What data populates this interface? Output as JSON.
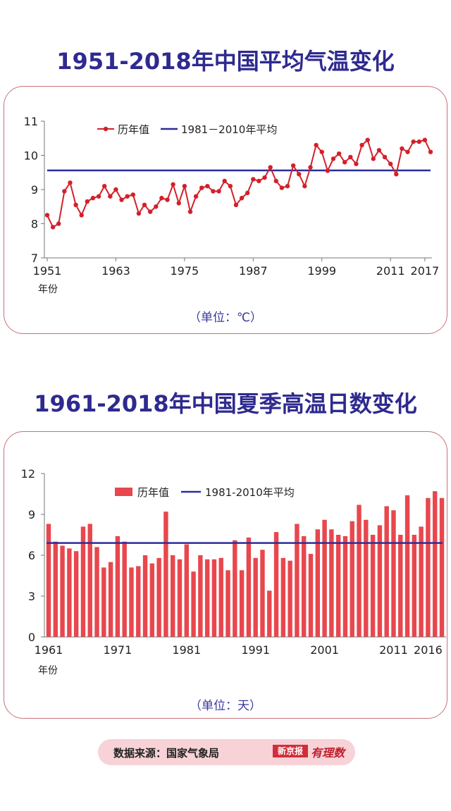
{
  "page": {
    "title1": "1951-2018年中国平均气温变化",
    "title2": "1961-2018年中国夏季高温日数变化",
    "unit1": "（单位：℃）",
    "unit2": "（单位：天）",
    "source_label": "数据来源：国家气象局",
    "logo_box": "新京报",
    "logo_script": "有理数"
  },
  "colors": {
    "title": "#2e2a8f",
    "line_series": "#d3202a",
    "bar_series": "#e8474d",
    "average_line": "#2b2d9b",
    "card_border": "#c9717a",
    "source_bg": "#f7d2d7"
  },
  "chart_data": [
    {
      "type": "line",
      "title": "1951-2018年中国平均气温变化",
      "xlabel": "年份",
      "ylabel": "",
      "unit": "（单位：℃）",
      "ylim": [
        7,
        11
      ],
      "yticks": [
        7,
        8,
        9,
        10,
        11
      ],
      "xtick_labels": [
        "1951",
        "1963",
        "1975",
        "1987",
        "1999",
        "2011",
        "2017"
      ],
      "legend": [
        "历年值",
        "1981－2010年平均"
      ],
      "legend_position": "top-left",
      "x": [
        1951,
        1952,
        1953,
        1954,
        1955,
        1956,
        1957,
        1958,
        1959,
        1960,
        1961,
        1962,
        1963,
        1964,
        1965,
        1966,
        1967,
        1968,
        1969,
        1970,
        1971,
        1972,
        1973,
        1974,
        1975,
        1976,
        1977,
        1978,
        1979,
        1980,
        1981,
        1982,
        1983,
        1984,
        1985,
        1986,
        1987,
        1988,
        1989,
        1990,
        1991,
        1992,
        1993,
        1994,
        1995,
        1996,
        1997,
        1998,
        1999,
        2000,
        2001,
        2002,
        2003,
        2004,
        2005,
        2006,
        2007,
        2008,
        2009,
        2010,
        2011,
        2012,
        2013,
        2014,
        2015,
        2016,
        2017,
        2018
      ],
      "series": [
        {
          "name": "历年值",
          "values": [
            8.25,
            7.9,
            8.0,
            8.95,
            9.2,
            8.55,
            8.25,
            8.65,
            8.75,
            8.8,
            9.1,
            8.8,
            9.0,
            8.7,
            8.8,
            8.85,
            8.3,
            8.55,
            8.35,
            8.5,
            8.75,
            8.7,
            9.15,
            8.6,
            9.1,
            8.35,
            8.8,
            9.05,
            9.1,
            8.95,
            8.95,
            9.25,
            9.1,
            8.55,
            8.75,
            8.9,
            9.3,
            9.25,
            9.35,
            9.65,
            9.25,
            9.05,
            9.1,
            9.7,
            9.45,
            9.1,
            9.65,
            10.3,
            10.1,
            9.55,
            9.9,
            10.05,
            9.8,
            9.95,
            9.75,
            10.3,
            10.45,
            9.9,
            10.15,
            9.95,
            9.75,
            9.45,
            10.2,
            10.1,
            10.4,
            10.4,
            10.45,
            10.1
          ]
        }
      ],
      "average": {
        "name": "1981－2010年平均",
        "value": 9.56
      }
    },
    {
      "type": "bar",
      "title": "1961-2018年中国夏季高温日数变化",
      "xlabel": "年份",
      "ylabel": "",
      "unit": "（单位：天）",
      "ylim": [
        0,
        12
      ],
      "yticks": [
        0,
        3,
        6,
        9,
        12
      ],
      "xtick_labels": [
        "1961",
        "1971",
        "1981",
        "1991",
        "2001",
        "2011",
        "2016"
      ],
      "legend": [
        "历年值",
        "1981-2010年平均"
      ],
      "legend_position": "top-left",
      "x": [
        1961,
        1962,
        1963,
        1964,
        1965,
        1966,
        1967,
        1968,
        1969,
        1970,
        1971,
        1972,
        1973,
        1974,
        1975,
        1976,
        1977,
        1978,
        1979,
        1980,
        1981,
        1982,
        1983,
        1984,
        1985,
        1986,
        1987,
        1988,
        1989,
        1990,
        1991,
        1992,
        1993,
        1994,
        1995,
        1996,
        1997,
        1998,
        1999,
        2000,
        2001,
        2002,
        2003,
        2004,
        2005,
        2006,
        2007,
        2008,
        2009,
        2010,
        2011,
        2012,
        2013,
        2014,
        2015,
        2016,
        2017,
        2018
      ],
      "series": [
        {
          "name": "历年值",
          "values": [
            8.3,
            7.0,
            6.7,
            6.5,
            6.3,
            8.1,
            8.3,
            6.6,
            5.1,
            5.5,
            7.4,
            7.0,
            5.1,
            5.2,
            6.0,
            5.4,
            5.8,
            9.2,
            6.0,
            5.7,
            6.8,
            4.8,
            6.0,
            5.7,
            5.7,
            5.8,
            4.9,
            7.1,
            4.9,
            7.3,
            5.8,
            6.4,
            3.4,
            7.7,
            5.8,
            5.6,
            8.3,
            7.4,
            6.1,
            7.9,
            8.6,
            7.9,
            7.5,
            7.4,
            8.5,
            9.7,
            8.6,
            7.5,
            8.2,
            9.6,
            9.3,
            7.5,
            10.4,
            7.5,
            8.1,
            10.2,
            10.7,
            10.2
          ]
        }
      ],
      "average": {
        "name": "1981-2010年平均",
        "value": 6.9
      }
    }
  ]
}
